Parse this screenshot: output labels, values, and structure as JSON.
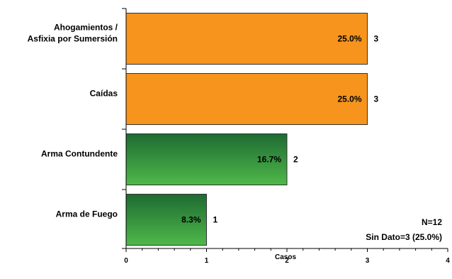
{
  "chart_data": {
    "type": "bar",
    "orientation": "horizontal",
    "categories": [
      "Ahogamientos /\nAsfixia por Sumersión",
      "Caídas",
      "Arma Contundente",
      "Arma de Fuego"
    ],
    "values": [
      3,
      3,
      2,
      1
    ],
    "percent_labels": [
      "25.0%",
      "25.0%",
      "16.7%",
      "8.3%"
    ],
    "bar_colors": [
      "orange",
      "orange",
      "green",
      "green"
    ],
    "colors": {
      "orange": "#f7941d",
      "green_dark": "#1e6b32",
      "green_light": "#4fb84a",
      "axis": "#000000"
    },
    "xlabel": "Casos",
    "xlim": [
      0,
      4
    ],
    "xticks": [
      "0",
      "1",
      "2",
      "3",
      "4"
    ],
    "grid": false,
    "notes": {
      "n": "N=12",
      "sin_dato": "Sin Dato=3 (25.0%)"
    }
  }
}
